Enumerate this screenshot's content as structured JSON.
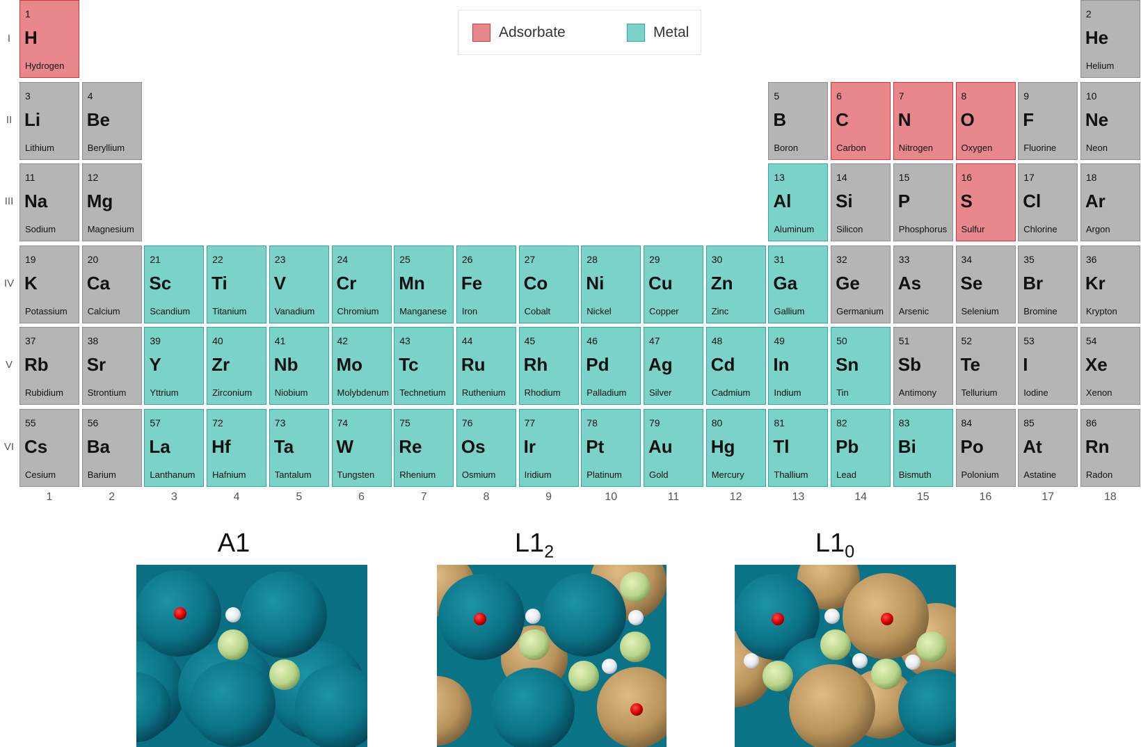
{
  "legend": {
    "adsorbate_label": "Adsorbate",
    "metal_label": "Metal",
    "adsorbate_color": "#e8888c",
    "metal_color": "#7bd2c9",
    "other_color": "#b5b5b5"
  },
  "row_labels": [
    "I",
    "II",
    "III",
    "IV",
    "V",
    "VI"
  ],
  "column_labels": [
    "1",
    "2",
    "3",
    "4",
    "5",
    "6",
    "7",
    "8",
    "9",
    "10",
    "11",
    "12",
    "13",
    "14",
    "15",
    "16",
    "17",
    "18"
  ],
  "elements": [
    {
      "num": "1",
      "sym": "H",
      "name": "Hydrogen",
      "row": 1,
      "col": 1,
      "type": "adsorbate"
    },
    {
      "num": "2",
      "sym": "He",
      "name": "Helium",
      "row": 1,
      "col": 18,
      "type": "other"
    },
    {
      "num": "3",
      "sym": "Li",
      "name": "Lithium",
      "row": 2,
      "col": 1,
      "type": "other"
    },
    {
      "num": "4",
      "sym": "Be",
      "name": "Beryllium",
      "row": 2,
      "col": 2,
      "type": "other"
    },
    {
      "num": "5",
      "sym": "B",
      "name": "Boron",
      "row": 2,
      "col": 13,
      "type": "other"
    },
    {
      "num": "6",
      "sym": "C",
      "name": "Carbon",
      "row": 2,
      "col": 14,
      "type": "adsorbate"
    },
    {
      "num": "7",
      "sym": "N",
      "name": "Nitrogen",
      "row": 2,
      "col": 15,
      "type": "adsorbate"
    },
    {
      "num": "8",
      "sym": "O",
      "name": "Oxygen",
      "row": 2,
      "col": 16,
      "type": "adsorbate"
    },
    {
      "num": "9",
      "sym": "F",
      "name": "Fluorine",
      "row": 2,
      "col": 17,
      "type": "other"
    },
    {
      "num": "10",
      "sym": "Ne",
      "name": "Neon",
      "row": 2,
      "col": 18,
      "type": "other"
    },
    {
      "num": "11",
      "sym": "Na",
      "name": "Sodium",
      "row": 3,
      "col": 1,
      "type": "other"
    },
    {
      "num": "12",
      "sym": "Mg",
      "name": "Magnesium",
      "row": 3,
      "col": 2,
      "type": "other"
    },
    {
      "num": "13",
      "sym": "Al",
      "name": "Aluminum",
      "row": 3,
      "col": 13,
      "type": "metal"
    },
    {
      "num": "14",
      "sym": "Si",
      "name": "Silicon",
      "row": 3,
      "col": 14,
      "type": "other"
    },
    {
      "num": "15",
      "sym": "P",
      "name": "Phosphorus",
      "row": 3,
      "col": 15,
      "type": "other"
    },
    {
      "num": "16",
      "sym": "S",
      "name": "Sulfur",
      "row": 3,
      "col": 16,
      "type": "adsorbate"
    },
    {
      "num": "17",
      "sym": "Cl",
      "name": "Chlorine",
      "row": 3,
      "col": 17,
      "type": "other"
    },
    {
      "num": "18",
      "sym": "Ar",
      "name": "Argon",
      "row": 3,
      "col": 18,
      "type": "other"
    },
    {
      "num": "19",
      "sym": "K",
      "name": "Potassium",
      "row": 4,
      "col": 1,
      "type": "other"
    },
    {
      "num": "20",
      "sym": "Ca",
      "name": "Calcium",
      "row": 4,
      "col": 2,
      "type": "other"
    },
    {
      "num": "21",
      "sym": "Sc",
      "name": "Scandium",
      "row": 4,
      "col": 3,
      "type": "metal"
    },
    {
      "num": "22",
      "sym": "Ti",
      "name": "Titanium",
      "row": 4,
      "col": 4,
      "type": "metal"
    },
    {
      "num": "23",
      "sym": "V",
      "name": "Vanadium",
      "row": 4,
      "col": 5,
      "type": "metal"
    },
    {
      "num": "24",
      "sym": "Cr",
      "name": "Chromium",
      "row": 4,
      "col": 6,
      "type": "metal"
    },
    {
      "num": "25",
      "sym": "Mn",
      "name": "Manganese",
      "row": 4,
      "col": 7,
      "type": "metal"
    },
    {
      "num": "26",
      "sym": "Fe",
      "name": "Iron",
      "row": 4,
      "col": 8,
      "type": "metal"
    },
    {
      "num": "27",
      "sym": "Co",
      "name": "Cobalt",
      "row": 4,
      "col": 9,
      "type": "metal"
    },
    {
      "num": "28",
      "sym": "Ni",
      "name": "Nickel",
      "row": 4,
      "col": 10,
      "type": "metal"
    },
    {
      "num": "29",
      "sym": "Cu",
      "name": "Copper",
      "row": 4,
      "col": 11,
      "type": "metal"
    },
    {
      "num": "30",
      "sym": "Zn",
      "name": "Zinc",
      "row": 4,
      "col": 12,
      "type": "metal"
    },
    {
      "num": "31",
      "sym": "Ga",
      "name": "Gallium",
      "row": 4,
      "col": 13,
      "type": "metal"
    },
    {
      "num": "32",
      "sym": "Ge",
      "name": "Germanium",
      "row": 4,
      "col": 14,
      "type": "other"
    },
    {
      "num": "33",
      "sym": "As",
      "name": "Arsenic",
      "row": 4,
      "col": 15,
      "type": "other"
    },
    {
      "num": "34",
      "sym": "Se",
      "name": "Selenium",
      "row": 4,
      "col": 16,
      "type": "other"
    },
    {
      "num": "35",
      "sym": "Br",
      "name": "Bromine",
      "row": 4,
      "col": 17,
      "type": "other"
    },
    {
      "num": "36",
      "sym": "Kr",
      "name": "Krypton",
      "row": 4,
      "col": 18,
      "type": "other"
    },
    {
      "num": "37",
      "sym": "Rb",
      "name": "Rubidium",
      "row": 5,
      "col": 1,
      "type": "other"
    },
    {
      "num": "38",
      "sym": "Sr",
      "name": "Strontium",
      "row": 5,
      "col": 2,
      "type": "other"
    },
    {
      "num": "39",
      "sym": "Y",
      "name": "Yttrium",
      "row": 5,
      "col": 3,
      "type": "metal"
    },
    {
      "num": "40",
      "sym": "Zr",
      "name": "Zirconium",
      "row": 5,
      "col": 4,
      "type": "metal"
    },
    {
      "num": "41",
      "sym": "Nb",
      "name": "Niobium",
      "row": 5,
      "col": 5,
      "type": "metal"
    },
    {
      "num": "42",
      "sym": "Mo",
      "name": "Molybdenum",
      "row": 5,
      "col": 6,
      "type": "metal"
    },
    {
      "num": "43",
      "sym": "Tc",
      "name": "Technetium",
      "row": 5,
      "col": 7,
      "type": "metal"
    },
    {
      "num": "44",
      "sym": "Ru",
      "name": "Ruthenium",
      "row": 5,
      "col": 8,
      "type": "metal"
    },
    {
      "num": "45",
      "sym": "Rh",
      "name": "Rhodium",
      "row": 5,
      "col": 9,
      "type": "metal"
    },
    {
      "num": "46",
      "sym": "Pd",
      "name": "Palladium",
      "row": 5,
      "col": 10,
      "type": "metal"
    },
    {
      "num": "47",
      "sym": "Ag",
      "name": "Silver",
      "row": 5,
      "col": 11,
      "type": "metal"
    },
    {
      "num": "48",
      "sym": "Cd",
      "name": "Cadmium",
      "row": 5,
      "col": 12,
      "type": "metal"
    },
    {
      "num": "49",
      "sym": "In",
      "name": "Indium",
      "row": 5,
      "col": 13,
      "type": "metal"
    },
    {
      "num": "50",
      "sym": "Sn",
      "name": "Tin",
      "row": 5,
      "col": 14,
      "type": "metal"
    },
    {
      "num": "51",
      "sym": "Sb",
      "name": "Antimony",
      "row": 5,
      "col": 15,
      "type": "other"
    },
    {
      "num": "52",
      "sym": "Te",
      "name": "Tellurium",
      "row": 5,
      "col": 16,
      "type": "other"
    },
    {
      "num": "53",
      "sym": "I",
      "name": "Iodine",
      "row": 5,
      "col": 17,
      "type": "other"
    },
    {
      "num": "54",
      "sym": "Xe",
      "name": "Xenon",
      "row": 5,
      "col": 18,
      "type": "other"
    },
    {
      "num": "55",
      "sym": "Cs",
      "name": "Cesium",
      "row": 6,
      "col": 1,
      "type": "other"
    },
    {
      "num": "56",
      "sym": "Ba",
      "name": "Barium",
      "row": 6,
      "col": 2,
      "type": "other"
    },
    {
      "num": "57",
      "sym": "La",
      "name": "Lanthanum",
      "row": 6,
      "col": 3,
      "type": "metal"
    },
    {
      "num": "72",
      "sym": "Hf",
      "name": "Hafnium",
      "row": 6,
      "col": 4,
      "type": "metal"
    },
    {
      "num": "73",
      "sym": "Ta",
      "name": "Tantalum",
      "row": 6,
      "col": 5,
      "type": "metal"
    },
    {
      "num": "74",
      "sym": "W",
      "name": "Tungsten",
      "row": 6,
      "col": 6,
      "type": "metal"
    },
    {
      "num": "75",
      "sym": "Re",
      "name": "Rhenium",
      "row": 6,
      "col": 7,
      "type": "metal"
    },
    {
      "num": "76",
      "sym": "Os",
      "name": "Osmium",
      "row": 6,
      "col": 8,
      "type": "metal"
    },
    {
      "num": "77",
      "sym": "Ir",
      "name": "Iridium",
      "row": 6,
      "col": 9,
      "type": "metal"
    },
    {
      "num": "78",
      "sym": "Pt",
      "name": "Platinum",
      "row": 6,
      "col": 10,
      "type": "metal"
    },
    {
      "num": "79",
      "sym": "Au",
      "name": "Gold",
      "row": 6,
      "col": 11,
      "type": "metal"
    },
    {
      "num": "80",
      "sym": "Hg",
      "name": "Mercury",
      "row": 6,
      "col": 12,
      "type": "metal"
    },
    {
      "num": "81",
      "sym": "Tl",
      "name": "Thallium",
      "row": 6,
      "col": 13,
      "type": "metal"
    },
    {
      "num": "82",
      "sym": "Pb",
      "name": "Lead",
      "row": 6,
      "col": 14,
      "type": "metal"
    },
    {
      "num": "83",
      "sym": "Bi",
      "name": "Bismuth",
      "row": 6,
      "col": 15,
      "type": "metal"
    },
    {
      "num": "84",
      "sym": "Po",
      "name": "Polonium",
      "row": 6,
      "col": 16,
      "type": "other"
    },
    {
      "num": "85",
      "sym": "At",
      "name": "Astatine",
      "row": 6,
      "col": 17,
      "type": "other"
    },
    {
      "num": "86",
      "sym": "Rn",
      "name": "Radon",
      "row": 6,
      "col": 18,
      "type": "other"
    }
  ],
  "structures": [
    {
      "title": "A1",
      "sub": ""
    },
    {
      "title": "L1",
      "sub": "2"
    },
    {
      "title": "L1",
      "sub": "0"
    }
  ]
}
